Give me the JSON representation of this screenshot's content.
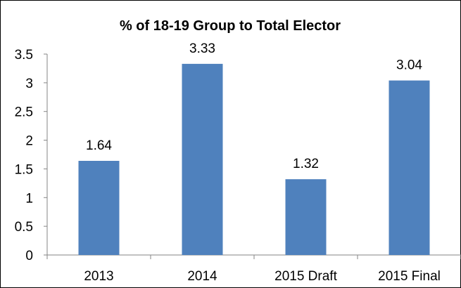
{
  "chart_data": {
    "type": "bar",
    "title": "% of 18-19 Group to Total Elector",
    "xlabel": "",
    "ylabel": "",
    "categories": [
      "2013",
      "2014",
      "2015 Draft",
      "2015 Final"
    ],
    "values": [
      1.64,
      3.33,
      1.32,
      3.04
    ],
    "data_labels": [
      "1.64",
      "3.33",
      "1.32",
      "3.04"
    ],
    "y_ticks": [
      "0",
      "0.5",
      "1",
      "1.5",
      "2",
      "2.5",
      "3",
      "3.5"
    ],
    "ylim": [
      0,
      3.5
    ],
    "grid": false,
    "legend": "none",
    "bar_color": "#4F81BD"
  }
}
